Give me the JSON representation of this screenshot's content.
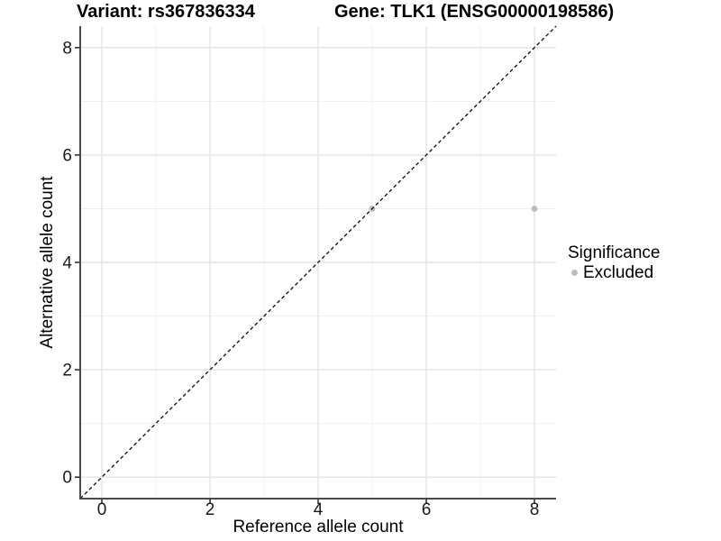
{
  "chart_data": {
    "type": "scatter",
    "titles": {
      "left": "Variant: rs367836334",
      "right": "Gene: TLK1 (ENSG00000198586)"
    },
    "xlabel": "Reference allele count",
    "ylabel": "Alternative allele count",
    "xlim": [
      -0.4,
      8.4
    ],
    "ylim": [
      -0.4,
      8.4
    ],
    "x_ticks": [
      0,
      2,
      4,
      6,
      8
    ],
    "y_ticks": [
      0,
      2,
      4,
      6,
      8
    ],
    "x_minor_ticks": [
      1,
      3,
      5,
      7
    ],
    "y_minor_ticks": [
      1,
      3,
      5,
      7
    ],
    "grid": "major+minor, no panel border, axis lines left+bottom",
    "identity_line": {
      "style": "dashed",
      "from": [
        -0.4,
        -0.4
      ],
      "to": [
        8.4,
        8.4
      ],
      "color": "#1a1a1a"
    },
    "series": [
      {
        "name": "Excluded",
        "color": "#bdbdbd",
        "points": [
          {
            "x": 5,
            "y": 5
          },
          {
            "x": 8,
            "y": 5
          }
        ]
      }
    ],
    "legend": {
      "title": "Significance",
      "position": "right",
      "items": [
        {
          "label": "Excluded",
          "color": "#bdbdbd"
        }
      ]
    },
    "colors": {
      "background": "#ffffff",
      "grid_major": "#e3e3e3",
      "grid_minor": "#efefef",
      "axis_line": "#4a4a4a",
      "tick_mark": "#222222",
      "tick_label": "#1a1a1a",
      "title_text": "#000000"
    }
  }
}
